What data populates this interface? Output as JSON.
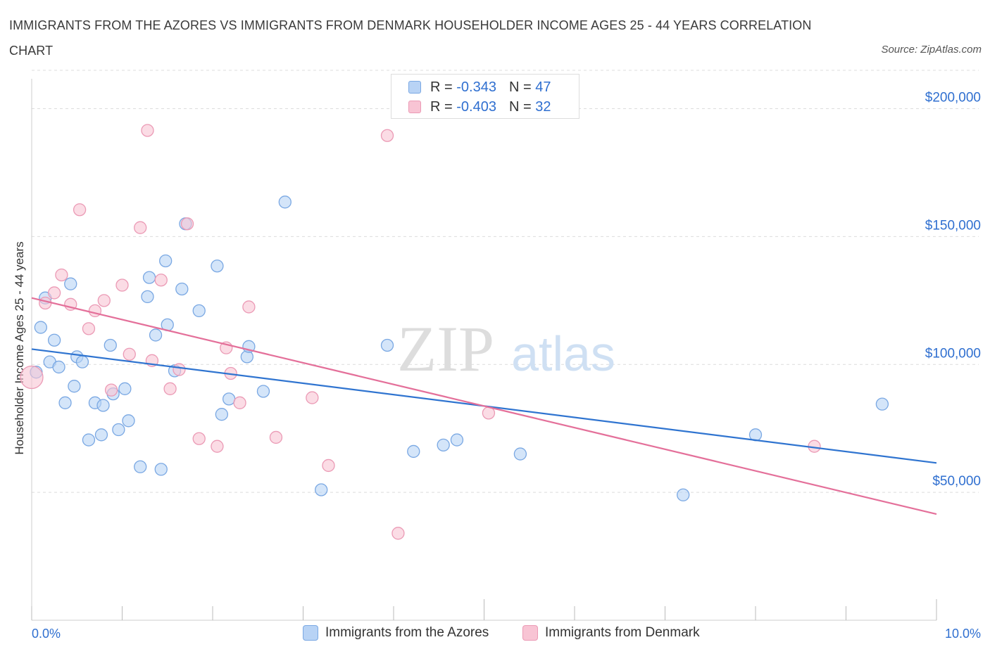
{
  "title": "IMMIGRANTS FROM THE AZORES VS IMMIGRANTS FROM DENMARK HOUSEHOLDER INCOME AGES 25 - 44 YEARS CORRELATION CHART",
  "source": "Source: ZipAtlas.com",
  "watermark": {
    "zip": "ZIP",
    "atlas": "atlas"
  },
  "legend_top": [
    {
      "r_label": "R =",
      "r_value": "-0.343",
      "n_label": "N =",
      "n_value": "47"
    },
    {
      "r_label": "R =",
      "r_value": "-0.403",
      "n_label": "N =",
      "n_value": "32"
    }
  ],
  "colors": {
    "azores_fill": "#b8d3f5",
    "azores_stroke": "#7aa8e3",
    "azores_line": "#2f74d0",
    "denmark_fill": "#f8c4d4",
    "denmark_stroke": "#eb9ab5",
    "denmark_line": "#e4709a",
    "tick_text": "#2f6fd0",
    "grid": "#dcdcdc"
  },
  "chart_data": {
    "type": "scatter",
    "xlabel": "",
    "ylabel": "Householder Income Ages 25 - 44 years",
    "xlim": [
      0,
      10
    ],
    "ylim": [
      0,
      215000
    ],
    "x_tick_labels": [
      "0.0%",
      "10.0%"
    ],
    "y_ticks": [
      50000,
      100000,
      150000,
      200000
    ],
    "y_tick_labels": [
      "$50,000",
      "$100,000",
      "$150,000",
      "$200,000"
    ],
    "grid": true,
    "legend_position": "bottom",
    "series": [
      {
        "name": "Immigrants from the Azores",
        "points": [
          [
            0.05,
            97000
          ],
          [
            0.1,
            114500
          ],
          [
            0.15,
            126000
          ],
          [
            0.2,
            101000
          ],
          [
            0.25,
            109500
          ],
          [
            0.3,
            99000
          ],
          [
            0.37,
            85000
          ],
          [
            0.43,
            131500
          ],
          [
            0.47,
            91500
          ],
          [
            0.5,
            103000
          ],
          [
            0.56,
            101000
          ],
          [
            0.63,
            70500
          ],
          [
            0.7,
            85000
          ],
          [
            0.77,
            72500
          ],
          [
            0.79,
            84000
          ],
          [
            0.87,
            107500
          ],
          [
            0.9,
            88500
          ],
          [
            0.96,
            74500
          ],
          [
            1.03,
            90500
          ],
          [
            1.07,
            78000
          ],
          [
            1.2,
            60000
          ],
          [
            1.28,
            126500
          ],
          [
            1.3,
            134000
          ],
          [
            1.37,
            111500
          ],
          [
            1.43,
            59000
          ],
          [
            1.48,
            140500
          ],
          [
            1.5,
            115500
          ],
          [
            1.58,
            97500
          ],
          [
            1.66,
            129500
          ],
          [
            1.7,
            155000
          ],
          [
            1.85,
            121000
          ],
          [
            2.05,
            138500
          ],
          [
            2.1,
            80500
          ],
          [
            2.18,
            86500
          ],
          [
            2.38,
            103000
          ],
          [
            2.4,
            107000
          ],
          [
            2.56,
            89500
          ],
          [
            2.8,
            163500
          ],
          [
            3.2,
            51000
          ],
          [
            3.93,
            107500
          ],
          [
            4.22,
            66000
          ],
          [
            4.55,
            68500
          ],
          [
            4.7,
            70500
          ],
          [
            5.4,
            65000
          ],
          [
            7.2,
            49000
          ],
          [
            8.0,
            72500
          ],
          [
            9.4,
            84500
          ]
        ]
      },
      {
        "name": "Immigrants from Denmark",
        "points": [
          [
            0.0,
            95000
          ],
          [
            0.15,
            124000
          ],
          [
            0.25,
            128000
          ],
          [
            0.33,
            135000
          ],
          [
            0.43,
            123500
          ],
          [
            0.53,
            160500
          ],
          [
            0.63,
            114000
          ],
          [
            0.7,
            121000
          ],
          [
            0.8,
            125000
          ],
          [
            0.88,
            90000
          ],
          [
            1.0,
            131000
          ],
          [
            1.08,
            104000
          ],
          [
            1.2,
            153500
          ],
          [
            1.28,
            191500
          ],
          [
            1.33,
            101500
          ],
          [
            1.43,
            133000
          ],
          [
            1.53,
            90500
          ],
          [
            1.63,
            98000
          ],
          [
            1.72,
            155000
          ],
          [
            1.85,
            71000
          ],
          [
            2.05,
            68000
          ],
          [
            2.15,
            106500
          ],
          [
            2.2,
            96500
          ],
          [
            2.3,
            85000
          ],
          [
            2.4,
            122500
          ],
          [
            2.7,
            71500
          ],
          [
            3.1,
            87000
          ],
          [
            3.28,
            60500
          ],
          [
            3.93,
            189500
          ],
          [
            4.05,
            34000
          ],
          [
            5.05,
            81000
          ],
          [
            8.65,
            68000
          ]
        ]
      }
    ],
    "trend_lines": [
      {
        "series": "Immigrants from the Azores",
        "from": [
          0,
          106000
        ],
        "to": [
          10,
          61500
        ]
      },
      {
        "series": "Immigrants from Denmark",
        "from": [
          0,
          126000
        ],
        "to": [
          10,
          41500
        ]
      }
    ]
  }
}
